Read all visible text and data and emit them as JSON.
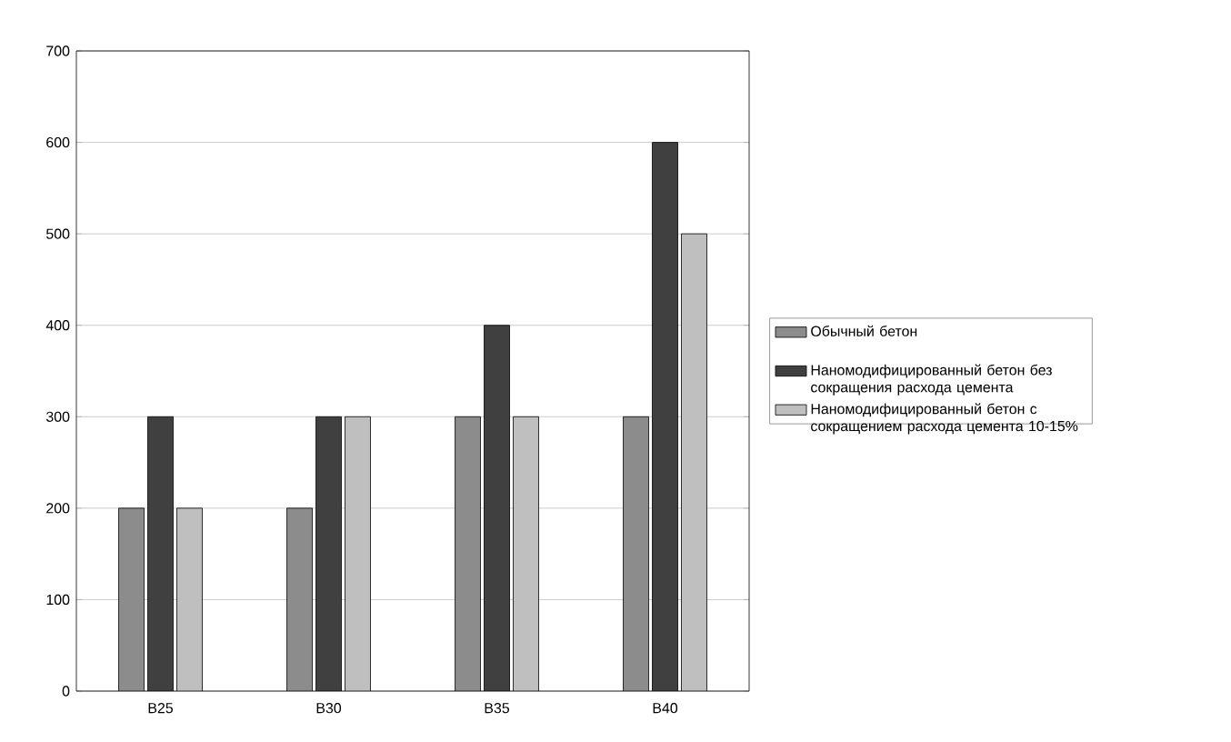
{
  "chart_data": {
    "type": "bar",
    "categories": [
      "B25",
      "B30",
      "B35",
      "B40"
    ],
    "series": [
      {
        "name": "Обычный бетон",
        "color": "#8c8c8c",
        "values": [
          200,
          200,
          300,
          300
        ]
      },
      {
        "name": "Наномодифицированный бетон без сокращения расхода цемента",
        "color": "#404040",
        "values": [
          300,
          300,
          400,
          600
        ]
      },
      {
        "name": "Наномодифицированный бетон с сокращением расхода цемента 10-15%",
        "color": "#bfbfbf",
        "values": [
          200,
          300,
          300,
          500
        ]
      }
    ],
    "ylim": [
      0,
      700
    ],
    "yticks": [
      0,
      100,
      200,
      300,
      400,
      500,
      600,
      700
    ],
    "grid": "y",
    "legend": "right"
  }
}
